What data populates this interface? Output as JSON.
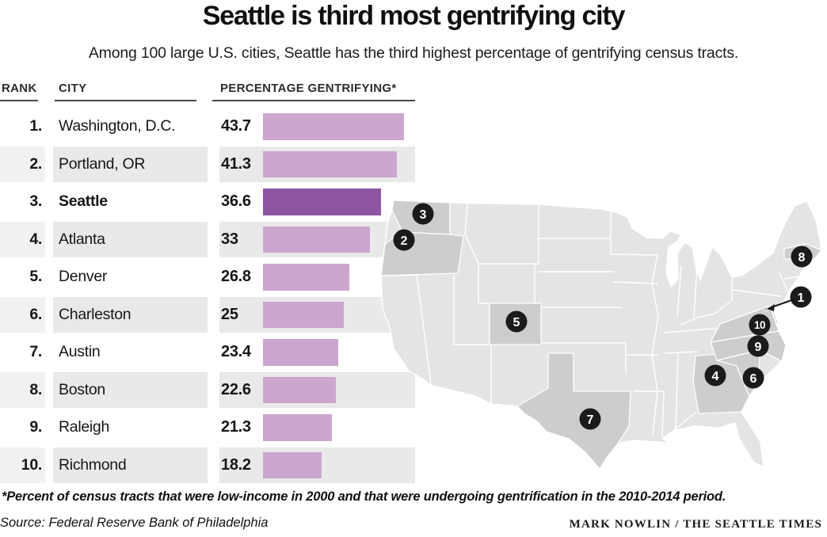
{
  "title": "Seattle is third most gentrifying city",
  "subtitle": "Among 100 large U.S. cities, Seattle has the third highest percentage of gentrifying census tracts.",
  "table": {
    "headers": {
      "rank": "RANK",
      "city": "CITY",
      "pct": "PERCENTAGE GENTRIFYING*"
    },
    "rows": [
      {
        "rank": "1.",
        "city": "Washington, D.C.",
        "value": 43.7,
        "value_label": "43.7",
        "highlight": false
      },
      {
        "rank": "2.",
        "city": "Portland, OR",
        "value": 41.3,
        "value_label": "41.3",
        "highlight": false
      },
      {
        "rank": "3.",
        "city": "Seattle",
        "value": 36.6,
        "value_label": "36.6",
        "highlight": true
      },
      {
        "rank": "4.",
        "city": "Atlanta",
        "value": 33,
        "value_label": "33",
        "highlight": false
      },
      {
        "rank": "5.",
        "city": "Denver",
        "value": 26.8,
        "value_label": "26.8",
        "highlight": false
      },
      {
        "rank": "6.",
        "city": "Charleston",
        "value": 25,
        "value_label": "25",
        "highlight": false
      },
      {
        "rank": "7.",
        "city": "Austin",
        "value": 23.4,
        "value_label": "23.4",
        "highlight": false
      },
      {
        "rank": "8.",
        "city": "Boston",
        "value": 22.6,
        "value_label": "22.6",
        "highlight": false
      },
      {
        "rank": "9.",
        "city": "Raleigh",
        "value": 21.3,
        "value_label": "21.3",
        "highlight": false
      },
      {
        "rank": "10.",
        "city": "Richmond",
        "value": 18.2,
        "value_label": "18.2",
        "highlight": false
      }
    ]
  },
  "map": {
    "markers": [
      {
        "n": "1",
        "city": "Washington, D.C."
      },
      {
        "n": "2",
        "city": "Portland, OR"
      },
      {
        "n": "3",
        "city": "Seattle"
      },
      {
        "n": "4",
        "city": "Atlanta"
      },
      {
        "n": "5",
        "city": "Denver"
      },
      {
        "n": "6",
        "city": "Charleston"
      },
      {
        "n": "7",
        "city": "Austin"
      },
      {
        "n": "8",
        "city": "Boston"
      },
      {
        "n": "9",
        "city": "Raleigh"
      },
      {
        "n": "10",
        "city": "Richmond"
      }
    ]
  },
  "footnote": "*Percent of census tracts that were low-income in 2000 and that were undergoing gentrification in the 2010-2014 period.",
  "source": "Source: Federal Reserve Bank of Philadelphia",
  "credit": "MARK NOWLIN / THE SEATTLE TIMES",
  "colors": {
    "bar-light": "#cba6ce",
    "bar-dark": "#8e55a2",
    "stripe": "#e9e9ea",
    "stripe-rank": "#f1f1f2",
    "map-base": "#e4e4e6",
    "map-highlight": "#cdcdd0",
    "marker": "#1b1b1b",
    "header-underline": "#4a4a4a"
  },
  "chart_data": {
    "type": "bar",
    "orientation": "horizontal",
    "title": "Seattle is third most gentrifying city",
    "subtitle": "Among 100 large U.S. cities, Seattle has the third highest percentage of gentrifying census tracts.",
    "categories": [
      "Washington, D.C.",
      "Portland, OR",
      "Seattle",
      "Atlanta",
      "Denver",
      "Charleston",
      "Austin",
      "Boston",
      "Raleigh",
      "Richmond"
    ],
    "values": [
      43.7,
      41.3,
      36.6,
      33,
      26.8,
      25,
      23.4,
      22.6,
      21.3,
      18.2
    ],
    "value_labels": [
      "43.7",
      "41.3",
      "36.6",
      "33",
      "26.8",
      "25",
      "23.4",
      "22.6",
      "21.3",
      "18.2"
    ],
    "ranks": [
      1,
      2,
      3,
      4,
      5,
      6,
      7,
      8,
      9,
      10
    ],
    "xlabel": "Percentage gentrifying",
    "ylabel": "City",
    "xlim": [
      0,
      45
    ],
    "grid": false,
    "legend": false,
    "highlight_category": "Seattle",
    "companion_map": "numbered markers 1-10 placed on a U.S. map at each city's state; states WA, OR, CO, TX, GA, SC, NC, VA, MA and D.C. shaded darker"
  }
}
